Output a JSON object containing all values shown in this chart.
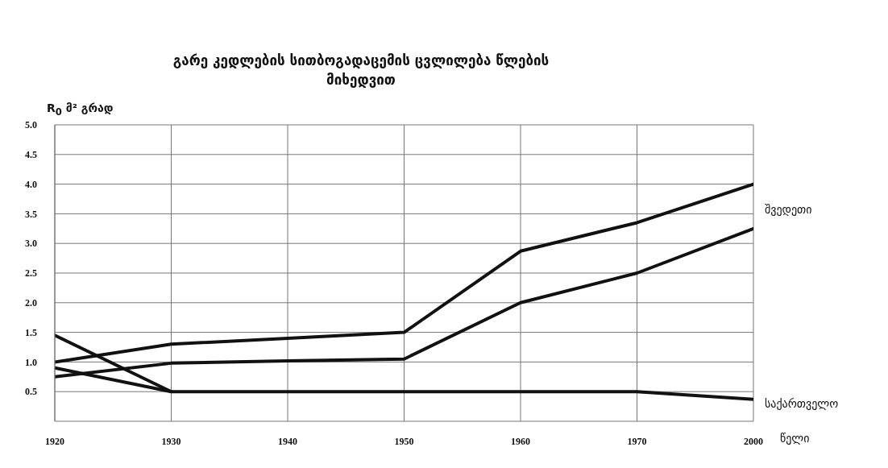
{
  "chart_data": {
    "type": "line",
    "title": "გარე კედლების სითბოგადაცემის ცვლილება წლების მიხედვით",
    "ylabel": "R$_{0}$ მ² გრად",
    "xlabel": "წელი",
    "categories": [
      "1920",
      "1930",
      "1940",
      "1950",
      "1960",
      "1970",
      "2000"
    ],
    "series": [
      {
        "name": "შვედეთი",
        "color": "#111111",
        "values": [
          1.0,
          1.3,
          1.4,
          1.5,
          2.87,
          3.35,
          4.0
        ]
      },
      {
        "color": "#111111",
        "values": [
          0.75,
          0.98,
          1.02,
          1.05,
          2.0,
          2.5,
          3.25
        ]
      },
      {
        "name": "საქართველო",
        "color": "#111111",
        "values": [
          1.45,
          0.5,
          0.5,
          0.5,
          0.5,
          0.5,
          0.37
        ]
      },
      {
        "color": "#111111",
        "values": [
          0.9,
          0.5,
          null,
          null,
          null,
          null,
          null
        ]
      }
    ],
    "ylim": [
      0,
      5
    ],
    "yticks": [
      0.5,
      {
        "value": 1,
        "label": "1.0"
      },
      1.5,
      {
        "value": 2,
        "label": "2.0"
      },
      2.5,
      {
        "value": 3,
        "label": "3.0"
      },
      3.5,
      {
        "value": 4,
        "label": "4.0"
      },
      4.5,
      {
        "value": 5,
        "label": "5.0"
      }
    ],
    "grid": true,
    "marker": "none",
    "line_style": "solid"
  }
}
